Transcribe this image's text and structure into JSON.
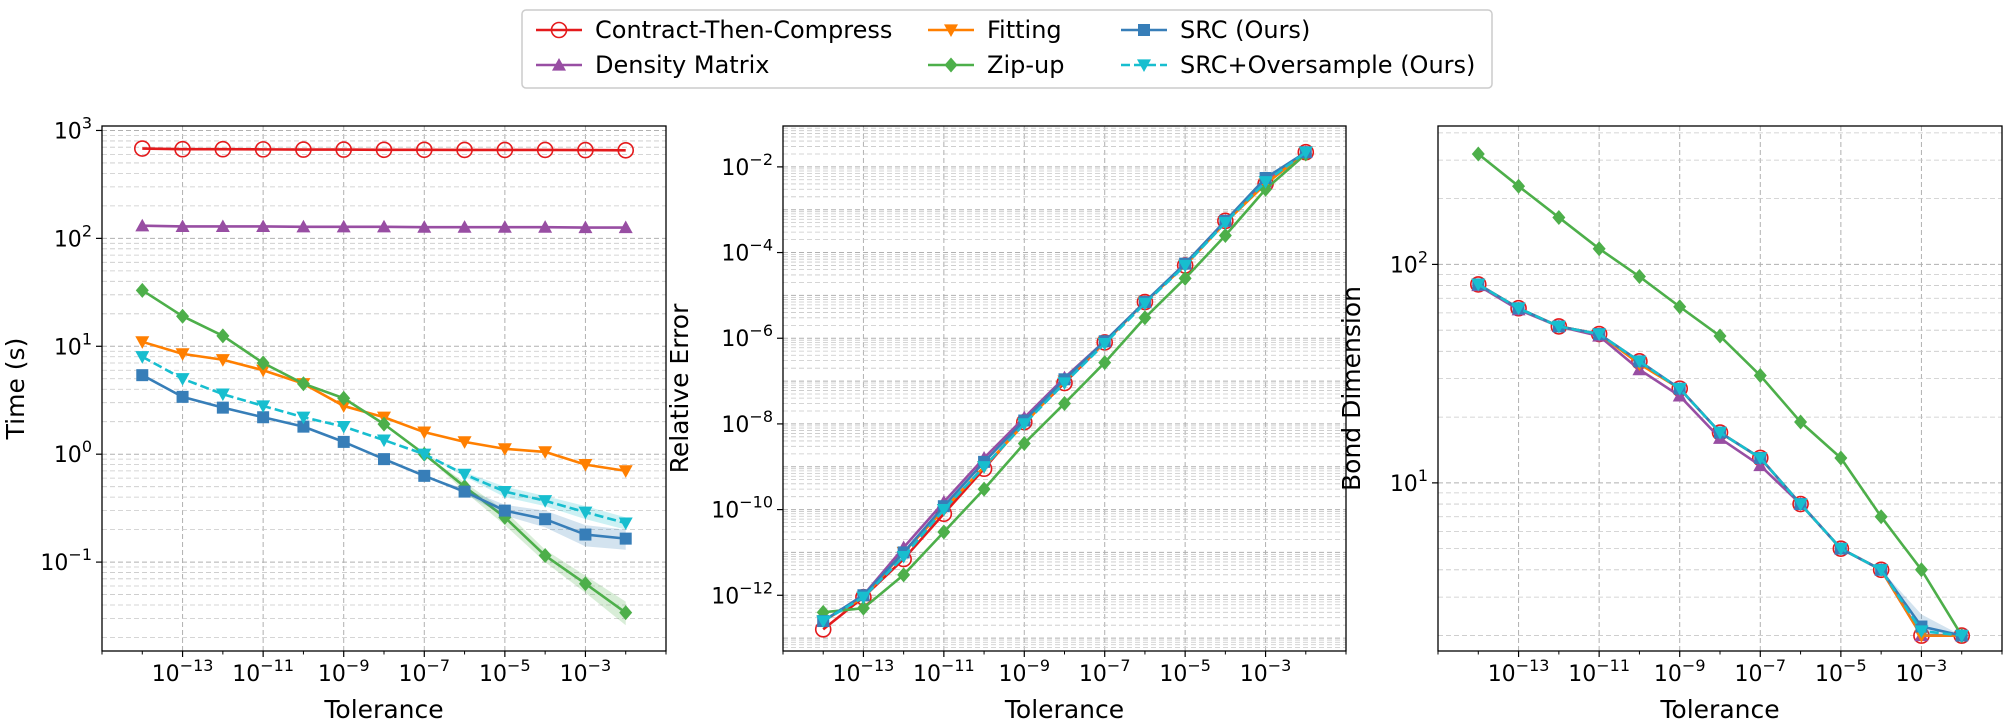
{
  "legend": [
    {
      "label": "Contract-Then-Compress",
      "color": "#e41a1c",
      "marker": "circle-open",
      "dash": "solid"
    },
    {
      "label": "Density Matrix",
      "color": "#984ea3",
      "marker": "triangle-up",
      "dash": "solid"
    },
    {
      "label": "Fitting",
      "color": "#ff7f00",
      "marker": "triangle-down",
      "dash": "solid"
    },
    {
      "label": "Zip-up",
      "color": "#4daf4a",
      "marker": "diamond",
      "dash": "solid"
    },
    {
      "label": "SRC (Ours)",
      "color": "#377eb8",
      "marker": "square",
      "dash": "solid"
    },
    {
      "label": "SRC+Oversample (Ours)",
      "color": "#17becf",
      "marker": "triangle-down",
      "dash": "dashed"
    }
  ],
  "chart_data": [
    {
      "type": "line",
      "xlabel": "Tolerance",
      "ylabel": "Time (s)",
      "xscale": "log",
      "yscale": "log",
      "xlim": [
        1e-15,
        0.1
      ],
      "ylim": [
        0.015,
        1100
      ],
      "grid": true,
      "xticks": [
        {
          "value": 1e-13,
          "base": "10",
          "exp": "−13"
        },
        {
          "value": 1e-11,
          "base": "10",
          "exp": "−11"
        },
        {
          "value": 1e-09,
          "base": "10",
          "exp": "−9"
        },
        {
          "value": 1e-07,
          "base": "10",
          "exp": "−7"
        },
        {
          "value": 1e-05,
          "base": "10",
          "exp": "−5"
        },
        {
          "value": 0.001,
          "base": "10",
          "exp": "−3"
        }
      ],
      "yticks": [
        {
          "value": 0.1,
          "base": "10",
          "exp": "−1"
        },
        {
          "value": 1,
          "base": "10",
          "exp": "0"
        },
        {
          "value": 10,
          "base": "10",
          "exp": "1"
        },
        {
          "value": 100,
          "base": "10",
          "exp": "2"
        },
        {
          "value": 1000,
          "base": "10",
          "exp": "3"
        }
      ],
      "x": [
        1e-14,
        1e-13,
        1e-12,
        1e-11,
        1e-10,
        1e-09,
        1e-08,
        1e-07,
        1e-06,
        1e-05,
        0.0001,
        0.001,
        0.01
      ],
      "series": [
        {
          "name": "Contract-Then-Compress",
          "values": [
            680,
            670,
            670,
            668,
            665,
            665,
            662,
            662,
            660,
            660,
            660,
            658,
            655
          ]
        },
        {
          "name": "Density Matrix",
          "values": [
            131,
            129,
            129,
            129,
            128,
            128,
            128,
            127,
            127,
            127,
            127,
            126,
            126
          ]
        },
        {
          "name": "Fitting",
          "values": [
            11,
            8.5,
            7.5,
            6,
            4.5,
            2.8,
            2.2,
            1.6,
            1.3,
            1.12,
            1.05,
            0.8,
            0.7
          ]
        },
        {
          "name": "Zip-up",
          "values": [
            33,
            19,
            12.5,
            7,
            4.5,
            3.3,
            1.9,
            1.0,
            0.5,
            0.26,
            0.115,
            0.063,
            0.034
          ],
          "band": [
            [
              33,
              33
            ],
            [
              19,
              19
            ],
            [
              12.5,
              12.5
            ],
            [
              7,
              7
            ],
            [
              4.5,
              4.5
            ],
            [
              3.3,
              3.3
            ],
            [
              1.9,
              1.9
            ],
            [
              1.0,
              1.0
            ],
            [
              0.45,
              0.55
            ],
            [
              0.22,
              0.3
            ],
            [
              0.1,
              0.13
            ],
            [
              0.052,
              0.075
            ],
            [
              0.026,
              0.043
            ]
          ]
        },
        {
          "name": "SRC (Ours)",
          "values": [
            5.4,
            3.4,
            2.7,
            2.2,
            1.8,
            1.3,
            0.9,
            0.63,
            0.45,
            0.3,
            0.25,
            0.18,
            0.165
          ],
          "band": [
            [
              5.4,
              5.4
            ],
            [
              3.4,
              3.4
            ],
            [
              2.7,
              2.7
            ],
            [
              2.2,
              2.2
            ],
            [
              1.8,
              1.8
            ],
            [
              1.3,
              1.3
            ],
            [
              0.9,
              0.9
            ],
            [
              0.63,
              0.63
            ],
            [
              0.43,
              0.48
            ],
            [
              0.27,
              0.34
            ],
            [
              0.21,
              0.3
            ],
            [
              0.14,
              0.22
            ],
            [
              0.13,
              0.2
            ]
          ]
        },
        {
          "name": "SRC+Oversample (Ours)",
          "values": [
            8.0,
            5.0,
            3.6,
            2.8,
            2.2,
            1.8,
            1.35,
            1.0,
            0.65,
            0.45,
            0.37,
            0.29,
            0.23
          ],
          "band": [
            [
              8.0,
              8.0
            ],
            [
              5.0,
              5.0
            ],
            [
              3.6,
              3.6
            ],
            [
              2.8,
              2.8
            ],
            [
              2.2,
              2.2
            ],
            [
              1.8,
              1.8
            ],
            [
              1.35,
              1.35
            ],
            [
              1.0,
              1.0
            ],
            [
              0.62,
              0.68
            ],
            [
              0.4,
              0.5
            ],
            [
              0.33,
              0.41
            ],
            [
              0.25,
              0.33
            ],
            [
              0.2,
              0.26
            ]
          ]
        }
      ]
    },
    {
      "type": "line",
      "xlabel": "Tolerance",
      "ylabel": "Relative Error",
      "xscale": "log",
      "yscale": "log",
      "xlim": [
        1e-15,
        0.1
      ],
      "ylim": [
        5e-14,
        0.09
      ],
      "grid": true,
      "xticks": [
        {
          "value": 1e-13,
          "base": "10",
          "exp": "−13"
        },
        {
          "value": 1e-11,
          "base": "10",
          "exp": "−11"
        },
        {
          "value": 1e-09,
          "base": "10",
          "exp": "−9"
        },
        {
          "value": 1e-07,
          "base": "10",
          "exp": "−7"
        },
        {
          "value": 1e-05,
          "base": "10",
          "exp": "−5"
        },
        {
          "value": 0.001,
          "base": "10",
          "exp": "−3"
        }
      ],
      "yticks": [
        {
          "value": 1e-12,
          "base": "10",
          "exp": "−12"
        },
        {
          "value": 1e-10,
          "base": "10",
          "exp": "−10"
        },
        {
          "value": 1e-08,
          "base": "10",
          "exp": "−8"
        },
        {
          "value": 1e-06,
          "base": "10",
          "exp": "−6"
        },
        {
          "value": 0.0001,
          "base": "10",
          "exp": "−4"
        },
        {
          "value": 0.01,
          "base": "10",
          "exp": "−2"
        }
      ],
      "x": [
        1e-14,
        1e-13,
        1e-12,
        1e-11,
        1e-10,
        1e-09,
        1e-08,
        1e-07,
        1e-06,
        1e-05,
        0.0001,
        0.001,
        0.01
      ],
      "series": [
        {
          "name": "Contract-Then-Compress",
          "values": [
            1.6e-13,
            9e-13,
            7e-12,
            8e-11,
            9e-10,
            1.1e-08,
            9e-08,
            8e-07,
            7e-06,
            5e-05,
            0.00055,
            0.004,
            0.022
          ]
        },
        {
          "name": "Density Matrix",
          "values": [
            2.5e-13,
            1e-12,
            1.3e-11,
            1.5e-10,
            1.6e-09,
            1.4e-08,
            1.2e-07,
            8.5e-07,
            7e-06,
            5.5e-05,
            0.00055,
            0.0045,
            0.022
          ]
        },
        {
          "name": "Fitting",
          "values": [
            2.5e-13,
            9e-13,
            1e-11,
            1e-10,
            1e-09,
            1e-08,
            1e-07,
            8e-07,
            7e-06,
            5e-05,
            0.0005,
            0.004,
            0.022
          ]
        },
        {
          "name": "Zip-up",
          "values": [
            4e-13,
            5e-13,
            3e-12,
            3e-11,
            3e-10,
            3.5e-09,
            3e-08,
            2.7e-07,
            3e-06,
            2.5e-05,
            0.00025,
            0.003,
            0.02
          ]
        },
        {
          "name": "SRC (Ours)",
          "values": [
            2.5e-13,
            1e-12,
            1e-11,
            1.2e-10,
            1.3e-09,
            1.2e-08,
            1.1e-07,
            8.5e-07,
            7e-06,
            5.5e-05,
            0.00055,
            0.0055,
            0.022
          ]
        },
        {
          "name": "SRC+Oversample (Ours)",
          "values": [
            2.5e-13,
            9e-13,
            8e-12,
            1e-10,
            1e-09,
            1e-08,
            9e-08,
            7.5e-07,
            6.5e-06,
            5e-05,
            0.0005,
            0.0045,
            0.022
          ]
        }
      ]
    },
    {
      "type": "line",
      "xlabel": "Tolerance",
      "ylabel": "Bond Dimension",
      "xscale": "log",
      "yscale": "log",
      "xlim": [
        1e-15,
        0.1
      ],
      "ylim": [
        1.7,
        430
      ],
      "grid": true,
      "xticks": [
        {
          "value": 1e-13,
          "base": "10",
          "exp": "−13"
        },
        {
          "value": 1e-11,
          "base": "10",
          "exp": "−11"
        },
        {
          "value": 1e-09,
          "base": "10",
          "exp": "−9"
        },
        {
          "value": 1e-07,
          "base": "10",
          "exp": "−7"
        },
        {
          "value": 1e-05,
          "base": "10",
          "exp": "−5"
        },
        {
          "value": 0.001,
          "base": "10",
          "exp": "−3"
        }
      ],
      "yticks": [
        {
          "value": 10,
          "base": "10",
          "exp": "1"
        },
        {
          "value": 100,
          "base": "10",
          "exp": "2"
        }
      ],
      "x": [
        1e-14,
        1e-13,
        1e-12,
        1e-11,
        1e-10,
        1e-09,
        1e-08,
        1e-07,
        1e-06,
        1e-05,
        0.0001,
        0.001,
        0.01
      ],
      "series": [
        {
          "name": "Contract-Then-Compress",
          "values": [
            81,
            63,
            52,
            48,
            36,
            27,
            17,
            13,
            8,
            5,
            4,
            2,
            2
          ]
        },
        {
          "name": "Density Matrix",
          "values": [
            80,
            62,
            52,
            47,
            33,
            25,
            16,
            12,
            8,
            5,
            4,
            2,
            2
          ]
        },
        {
          "name": "Fitting",
          "values": [
            81,
            63,
            52,
            48,
            35,
            27,
            17,
            13,
            8,
            5,
            4,
            2,
            2
          ]
        },
        {
          "name": "Zip-up",
          "values": [
            320,
            228,
            164,
            118,
            88,
            64,
            47,
            31,
            19,
            13,
            7,
            4,
            2
          ]
        },
        {
          "name": "SRC (Ours)",
          "values": [
            81,
            63,
            52,
            48,
            36,
            27,
            17,
            13,
            8,
            5,
            4,
            2.2,
            2
          ],
          "band": [
            [
              81,
              81
            ],
            [
              63,
              63
            ],
            [
              52,
              52
            ],
            [
              48,
              48
            ],
            [
              36,
              36
            ],
            [
              27,
              27
            ],
            [
              17,
              17
            ],
            [
              13,
              13
            ],
            [
              8,
              8
            ],
            [
              5,
              5
            ],
            [
              4,
              4
            ],
            [
              2,
              2.5
            ],
            [
              2,
              2
            ]
          ]
        },
        {
          "name": "SRC+Oversample (Ours)",
          "values": [
            81,
            63,
            52,
            48,
            36,
            27,
            17,
            13,
            8,
            5,
            4,
            2.1,
            2
          ]
        }
      ]
    }
  ]
}
